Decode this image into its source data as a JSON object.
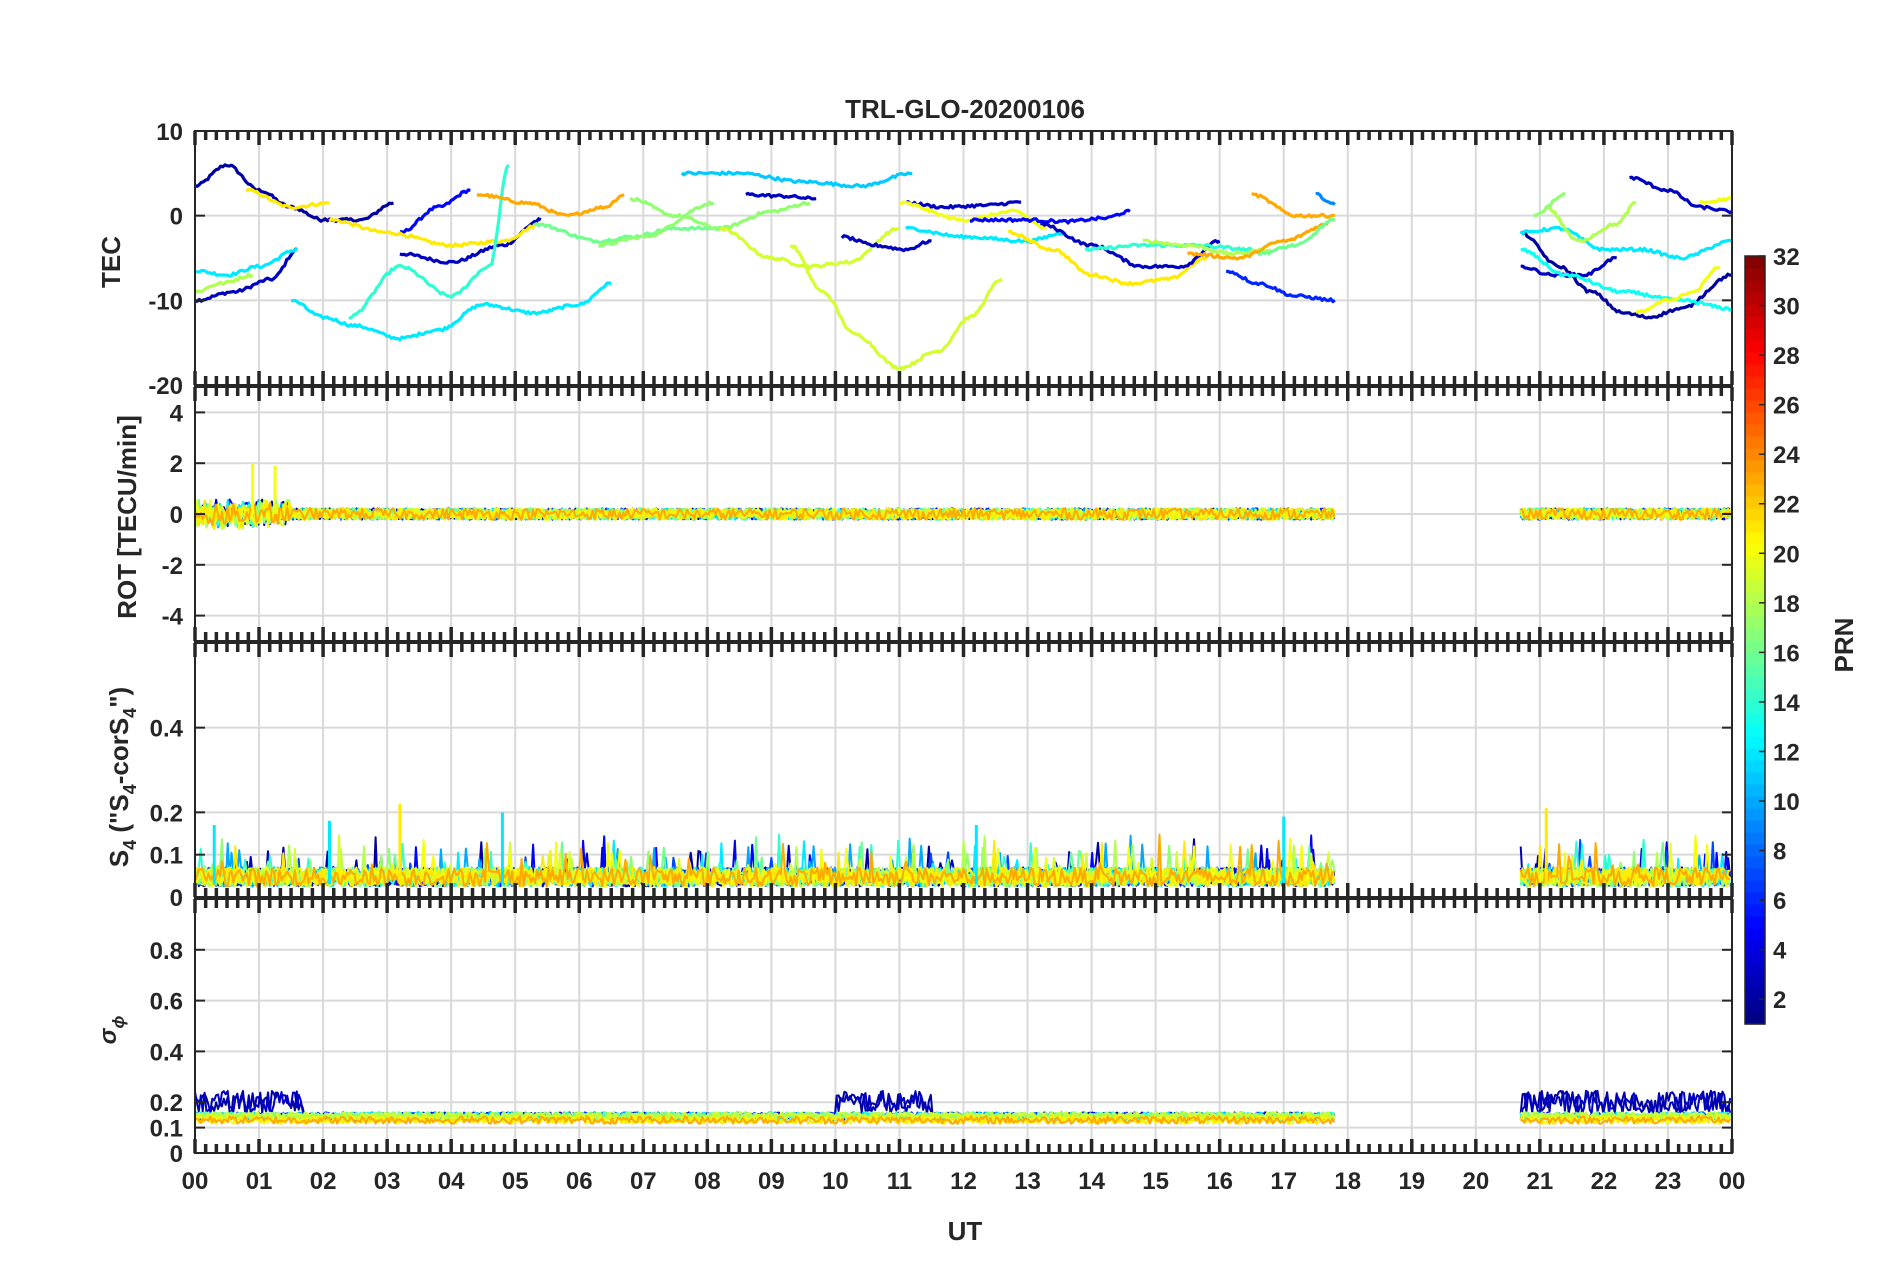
{
  "chart_data": {
    "type": "line",
    "title": "TRL-GLO-20200106",
    "xlabel": "UT",
    "x_tick_labels": [
      "00",
      "01",
      "02",
      "03",
      "04",
      "05",
      "06",
      "07",
      "08",
      "09",
      "10",
      "11",
      "12",
      "13",
      "14",
      "15",
      "16",
      "17",
      "18",
      "19",
      "20",
      "21",
      "22",
      "23",
      "00"
    ],
    "xlim": [
      0,
      24
    ],
    "grid": true,
    "panels": [
      {
        "id": "tec",
        "ylabel": "TEC",
        "ylim": [
          -20,
          10
        ],
        "yticks": [
          10,
          0,
          -10,
          -20
        ]
      },
      {
        "id": "rot",
        "ylabel": "ROT [TECU/min]",
        "ylim": [
          -5,
          5
        ],
        "yticks": [
          4,
          2,
          0,
          -2,
          -4
        ]
      },
      {
        "id": "s4",
        "ylabel_main": "S",
        "ylabel_sub": "4",
        "ylabel_rest": " (\"S",
        "ylabel_sub2": "4",
        "ylabel_rest2": "-corS",
        "ylabel_sub3": "4",
        "ylabel_end": "\")",
        "ylim": [
          0,
          0.6
        ],
        "yticks": [
          0.4,
          0.2,
          0.1,
          0
        ]
      },
      {
        "id": "sigma",
        "ylabel_main": "σ",
        "ylabel_sub": "ϕ",
        "ylim": [
          0,
          1
        ],
        "yticks": [
          0.8,
          0.6,
          0.4,
          0.2,
          0.1,
          0
        ]
      }
    ],
    "colorbar": {
      "label": "PRN",
      "range": [
        1,
        32
      ],
      "ticks": [
        32,
        30,
        28,
        26,
        24,
        22,
        20,
        18,
        16,
        14,
        12,
        10,
        8,
        6,
        4,
        2
      ]
    },
    "tec_series": [
      {
        "prn": 2,
        "points": [
          [
            0,
            3.5
          ],
          [
            0.5,
            6
          ],
          [
            1,
            3
          ],
          [
            1.5,
            1
          ],
          [
            2,
            -0.5
          ]
        ]
      },
      {
        "prn": 3,
        "points": [
          [
            0,
            -10
          ],
          [
            0.6,
            -9
          ],
          [
            1.2,
            -7.5
          ],
          [
            1.6,
            -4
          ]
        ]
      },
      {
        "prn": 2,
        "points": [
          [
            2,
            -0.5
          ],
          [
            2.6,
            -0.5
          ],
          [
            3.1,
            1.5
          ]
        ]
      },
      {
        "prn": 3,
        "points": [
          [
            3.2,
            -4.5
          ],
          [
            4,
            -5.5
          ],
          [
            4.8,
            -3.5
          ],
          [
            5.4,
            -0.5
          ]
        ]
      },
      {
        "prn": 5,
        "points": [
          [
            3.2,
            -2
          ],
          [
            3.8,
            1
          ],
          [
            4.3,
            3
          ]
        ]
      },
      {
        "prn": 21,
        "points": [
          [
            0.8,
            3
          ],
          [
            1.5,
            1
          ],
          [
            2.1,
            1.5
          ]
        ]
      },
      {
        "prn": 21,
        "points": [
          [
            2.1,
            -0.5
          ],
          [
            3,
            -2
          ],
          [
            4,
            -3.5
          ],
          [
            4.8,
            -3
          ],
          [
            5.4,
            -1
          ]
        ]
      },
      {
        "prn": 12,
        "points": [
          [
            0,
            -6.5
          ],
          [
            0.5,
            -7
          ],
          [
            1,
            -6
          ],
          [
            1.6,
            -4
          ]
        ]
      },
      {
        "prn": 12,
        "points": [
          [
            1.5,
            -10
          ],
          [
            2,
            -12
          ],
          [
            2.5,
            -13
          ],
          [
            3.2,
            -14.5
          ],
          [
            3.8,
            -13.5
          ],
          [
            4.5,
            -10.5
          ],
          [
            5.3,
            -11.5
          ],
          [
            6,
            -10.5
          ],
          [
            6.5,
            -8
          ]
        ]
      },
      {
        "prn": 14,
        "points": [
          [
            2.4,
            -12
          ],
          [
            3.2,
            -6
          ],
          [
            4,
            -9.5
          ],
          [
            4.6,
            -6
          ],
          [
            4.9,
            6
          ]
        ]
      },
      {
        "prn": 23,
        "points": [
          [
            4.4,
            2.5
          ],
          [
            5.2,
            1.5
          ],
          [
            5.8,
            0
          ],
          [
            6.4,
            1
          ],
          [
            6.7,
            2.5
          ]
        ]
      },
      {
        "prn": 18,
        "points": [
          [
            0,
            -9
          ],
          [
            0.4,
            -8
          ],
          [
            0.9,
            -7
          ]
        ]
      },
      {
        "prn": 16,
        "points": [
          [
            5.3,
            -1
          ],
          [
            6.3,
            -3
          ],
          [
            6.8,
            -2.5
          ],
          [
            7.5,
            -1.5
          ],
          [
            8.3,
            -1.5
          ]
        ]
      },
      {
        "prn": 17,
        "points": [
          [
            6.3,
            -3.5
          ],
          [
            7,
            -2.5
          ],
          [
            8.1,
            1.5
          ]
        ]
      },
      {
        "prn": 17,
        "points": [
          [
            6.8,
            2
          ],
          [
            7.5,
            0
          ],
          [
            8.2,
            -1.5
          ],
          [
            9,
            0.5
          ],
          [
            9.6,
            1.5
          ]
        ]
      },
      {
        "prn": 11,
        "points": [
          [
            7.6,
            5
          ],
          [
            8.5,
            5
          ],
          [
            9.5,
            4
          ],
          [
            10.4,
            3.5
          ],
          [
            11.2,
            5
          ]
        ]
      },
      {
        "prn": 3,
        "points": [
          [
            8.6,
            2.5
          ],
          [
            9.2,
            2.3
          ],
          [
            9.7,
            2
          ]
        ]
      },
      {
        "prn": 19,
        "points": [
          [
            8.2,
            -1.5
          ],
          [
            9,
            -5
          ],
          [
            9.6,
            -6
          ],
          [
            10.2,
            -5.5
          ],
          [
            11,
            -1.5
          ]
        ]
      },
      {
        "prn": 19,
        "points": [
          [
            9.3,
            -3.5
          ],
          [
            9.8,
            -9
          ],
          [
            10.3,
            -14
          ],
          [
            11,
            -18
          ],
          [
            11.6,
            -16
          ],
          [
            12.1,
            -12
          ],
          [
            12.6,
            -7.5
          ]
        ]
      },
      {
        "prn": 3,
        "points": [
          [
            10.1,
            -2.5
          ],
          [
            10.6,
            -3.5
          ],
          [
            11.1,
            -4
          ],
          [
            11.5,
            -3
          ]
        ]
      },
      {
        "prn": 3,
        "points": [
          [
            11.1,
            1.5
          ],
          [
            11.7,
            1
          ],
          [
            12.3,
            1.2
          ],
          [
            12.9,
            1.6
          ]
        ]
      },
      {
        "prn": 20,
        "points": [
          [
            11,
            1.5
          ],
          [
            12,
            -0.5
          ],
          [
            12.8,
            0.5
          ],
          [
            13.3,
            -1.5
          ]
        ]
      },
      {
        "prn": 12,
        "points": [
          [
            11.1,
            -1.5
          ],
          [
            12,
            -2.5
          ],
          [
            13,
            -3
          ],
          [
            13.6,
            -2
          ]
        ]
      },
      {
        "prn": 5,
        "points": [
          [
            12.1,
            -0.5
          ],
          [
            13,
            -0.5
          ],
          [
            13.6,
            -0.7
          ],
          [
            14.2,
            -0.3
          ],
          [
            14.6,
            0.5
          ]
        ]
      },
      {
        "prn": 21,
        "points": [
          [
            12.7,
            -2
          ],
          [
            13.4,
            -4
          ],
          [
            14,
            -7
          ],
          [
            14.6,
            -8
          ],
          [
            15.2,
            -7.5
          ],
          [
            15.8,
            -5
          ]
        ]
      },
      {
        "prn": 3,
        "points": [
          [
            13.2,
            -1
          ],
          [
            14,
            -3.5
          ],
          [
            14.8,
            -6
          ],
          [
            15.4,
            -6
          ],
          [
            16,
            -3
          ]
        ]
      },
      {
        "prn": 14,
        "points": [
          [
            13.9,
            -4
          ],
          [
            14.8,
            -3.5
          ],
          [
            15.6,
            -3.5
          ],
          [
            16.5,
            -4
          ]
        ]
      },
      {
        "prn": 18,
        "points": [
          [
            14.8,
            -3
          ],
          [
            15.5,
            -3.5
          ],
          [
            16.2,
            -4.5
          ],
          [
            16.8,
            -4
          ]
        ]
      },
      {
        "prn": 23,
        "points": [
          [
            15.5,
            -4.5
          ],
          [
            16.3,
            -5
          ],
          [
            17,
            -3
          ],
          [
            17.7,
            -1
          ]
        ]
      },
      {
        "prn": 6,
        "points": [
          [
            16.1,
            -6.5
          ],
          [
            16.6,
            -8
          ],
          [
            17.2,
            -9.5
          ],
          [
            17.8,
            -10
          ]
        ]
      },
      {
        "prn": 23,
        "points": [
          [
            16.5,
            2.5
          ],
          [
            17.2,
            0
          ],
          [
            17.8,
            0
          ]
        ]
      },
      {
        "prn": 16,
        "points": [
          [
            16.6,
            -4.5
          ],
          [
            17.2,
            -3.5
          ],
          [
            17.8,
            -0.5
          ]
        ]
      },
      {
        "prn": 9,
        "points": [
          [
            17.5,
            2.5
          ],
          [
            17.8,
            1.3
          ]
        ]
      },
      {
        "prn": 3,
        "points": [
          [
            20.7,
            -6
          ],
          [
            21.2,
            -7
          ],
          [
            21.7,
            -7
          ],
          [
            22.2,
            -5
          ]
        ]
      },
      {
        "prn": 2,
        "points": [
          [
            20.7,
            -2
          ],
          [
            21.3,
            -6
          ],
          [
            21.8,
            -9
          ],
          [
            22.3,
            -11.5
          ],
          [
            22.7,
            -12
          ],
          [
            23.2,
            -11
          ],
          [
            24,
            -7
          ]
        ]
      },
      {
        "prn": 12,
        "points": [
          [
            20.7,
            -2
          ],
          [
            21.3,
            -1.5
          ],
          [
            22,
            -4
          ],
          [
            22.6,
            -4
          ],
          [
            23.2,
            -5
          ],
          [
            24,
            -3
          ]
        ]
      },
      {
        "prn": 13,
        "points": [
          [
            20.7,
            -4
          ],
          [
            21.4,
            -7
          ],
          [
            22.3,
            -9
          ],
          [
            23.2,
            -10
          ],
          [
            24,
            -11
          ]
        ]
      },
      {
        "prn": 18,
        "points": [
          [
            21.1,
            1
          ],
          [
            21.6,
            -3
          ],
          [
            22.2,
            -1
          ],
          [
            22.5,
            1.5
          ]
        ]
      },
      {
        "prn": 17,
        "points": [
          [
            20.9,
            0
          ],
          [
            21.4,
            2.5
          ]
        ]
      },
      {
        "prn": 3,
        "points": [
          [
            22.4,
            4.5
          ],
          [
            23,
            3
          ],
          [
            23.5,
            1
          ],
          [
            24,
            0.5
          ]
        ]
      },
      {
        "prn": 20,
        "points": [
          [
            22.5,
            -11.5
          ],
          [
            23,
            -10
          ],
          [
            23.4,
            -9
          ],
          [
            23.8,
            -6
          ]
        ]
      },
      {
        "prn": 20,
        "points": [
          [
            23.5,
            1.5
          ],
          [
            24,
            2
          ]
        ]
      }
    ],
    "rot_segments": [
      [
        0,
        17.8
      ],
      [
        20.7,
        24
      ]
    ],
    "rot_spikes": [
      {
        "x": 0.9,
        "y": 2.0
      },
      {
        "x": 1.25,
        "y": 1.9
      }
    ],
    "s4_segments": [
      [
        0,
        17.8
      ],
      [
        20.7,
        24
      ]
    ],
    "s4_peaks": [
      {
        "x": 3.2,
        "y": 0.22
      },
      {
        "x": 4.8,
        "y": 0.2
      },
      {
        "x": 21.1,
        "y": 0.21
      },
      {
        "x": 0.3,
        "y": 0.17
      },
      {
        "x": 2.1,
        "y": 0.18
      },
      {
        "x": 12.2,
        "y": 0.17
      },
      {
        "x": 17,
        "y": 0.19
      }
    ],
    "sigma_segments": [
      [
        0,
        17.8
      ],
      [
        20.7,
        24
      ]
    ]
  }
}
